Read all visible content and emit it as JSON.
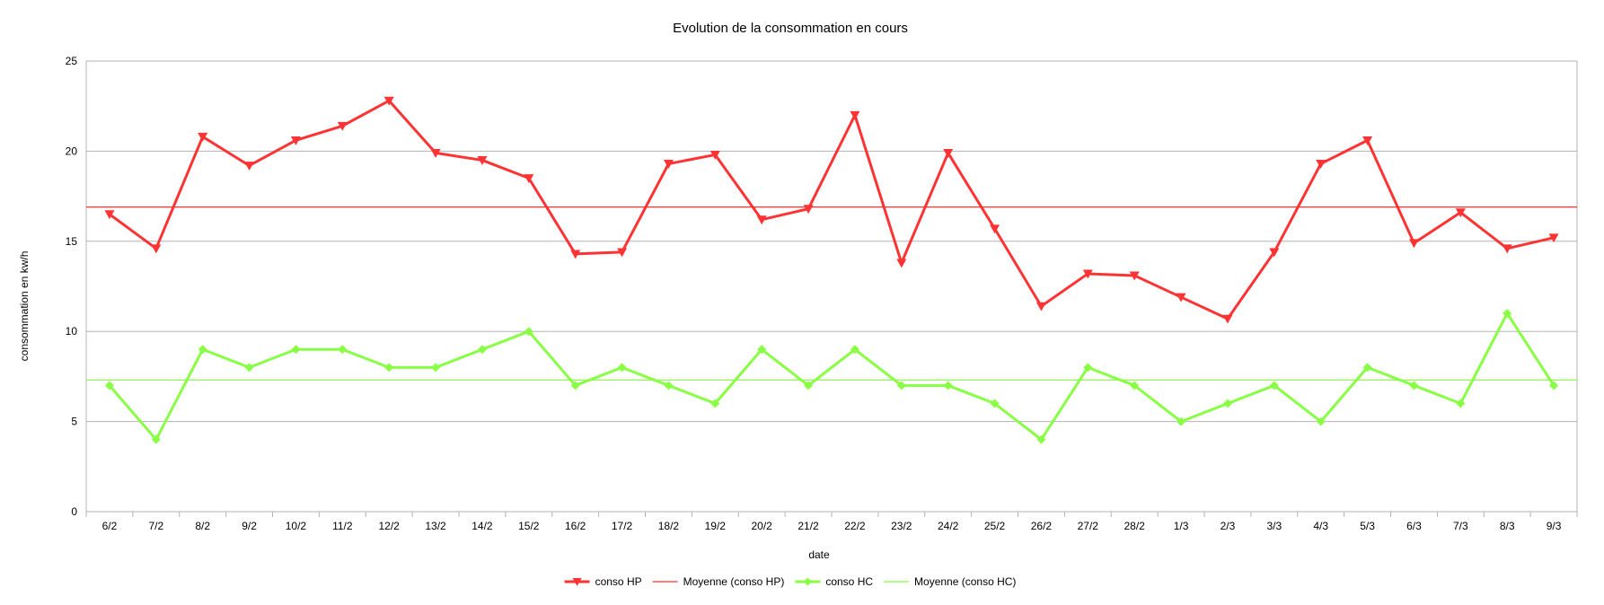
{
  "chart_data": {
    "type": "line",
    "title": "Evolution de la consommation en cours",
    "xlabel": "date",
    "ylabel": "consommation en kw/h",
    "ylim": [
      0,
      25
    ],
    "yticks": [
      0,
      5,
      10,
      15,
      20,
      25
    ],
    "grid": true,
    "legend_position": "bottom",
    "categories": [
      "6/2",
      "7/2",
      "8/2",
      "9/2",
      "10/2",
      "11/2",
      "12/2",
      "13/2",
      "14/2",
      "15/2",
      "16/2",
      "17/2",
      "18/2",
      "19/2",
      "20/2",
      "21/2",
      "22/2",
      "23/2",
      "24/2",
      "25/2",
      "26/2",
      "27/2",
      "28/2",
      "1/3",
      "2/3",
      "3/3",
      "4/3",
      "5/3",
      "6/3",
      "7/3",
      "8/3",
      "9/3"
    ],
    "series": [
      {
        "name": "conso HP",
        "color": "#ff3333",
        "marker": "triangle-down",
        "values": [
          16.5,
          14.6,
          20.8,
          19.2,
          20.6,
          21.4,
          22.8,
          19.9,
          19.5,
          18.5,
          14.3,
          14.4,
          19.3,
          19.8,
          16.2,
          16.8,
          22.0,
          13.8,
          19.9,
          15.7,
          11.4,
          13.2,
          13.1,
          11.9,
          10.7,
          14.4,
          19.3,
          20.6,
          14.9,
          16.6,
          14.6,
          15.2
        ]
      },
      {
        "name": "Moyenne (conso HP)",
        "color": "#ff3333",
        "marker": "none",
        "constant": 16.9
      },
      {
        "name": "conso HC",
        "color": "#88ff44",
        "marker": "diamond",
        "values": [
          7,
          4,
          9,
          8,
          9,
          9,
          8,
          8,
          9,
          10,
          7,
          8,
          7,
          6,
          9,
          7,
          9,
          7,
          7,
          6,
          4,
          8,
          7,
          5,
          6,
          7,
          5,
          8,
          7,
          6,
          11,
          7
        ]
      },
      {
        "name": "Moyenne (conso HC)",
        "color": "#88ff44",
        "marker": "none",
        "constant": 7.3
      }
    ]
  }
}
